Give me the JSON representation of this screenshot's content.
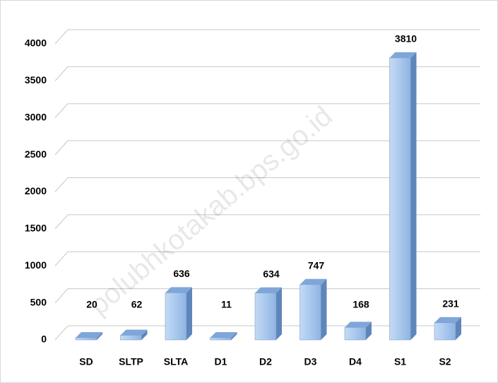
{
  "chart_data": {
    "type": "bar3d",
    "categories": [
      "SD",
      "SLTP",
      "SLTA",
      "D1",
      "D2",
      "D3",
      "D4",
      "S1",
      "S2"
    ],
    "values": [
      20,
      62,
      636,
      11,
      634,
      747,
      168,
      3810,
      231
    ],
    "color": "#a9c8ee",
    "ylim": [
      0,
      4000
    ],
    "yticks": [
      0,
      500,
      1000,
      1500,
      2000,
      2500,
      3000,
      3500,
      4000
    ],
    "grid": true,
    "watermark": "polubhkotakab.bps.go.id"
  }
}
